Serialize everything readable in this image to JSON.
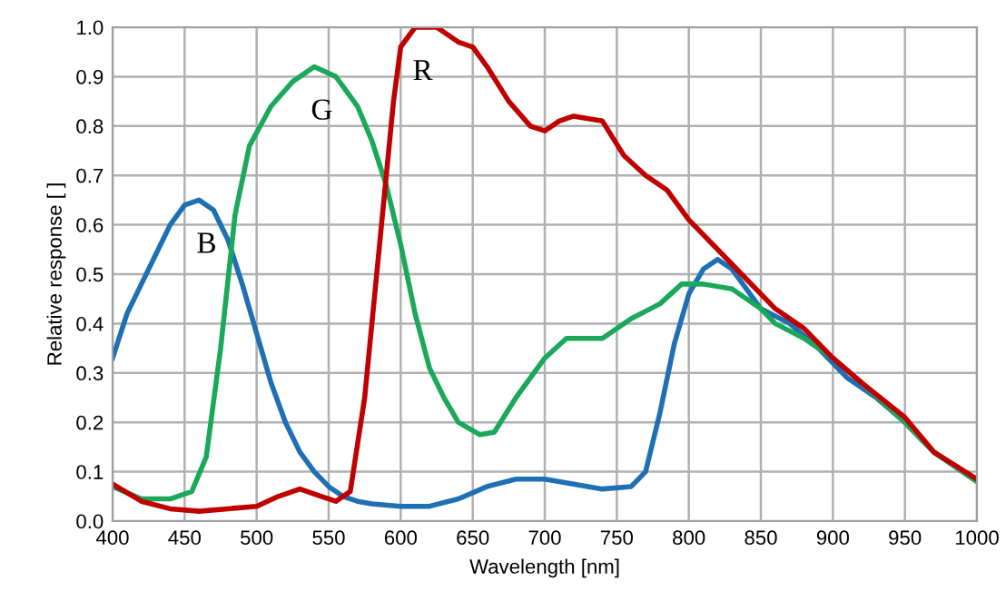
{
  "chart_data": {
    "type": "line",
    "xlabel": "Wavelength [nm]",
    "ylabel": "Relative response [ ]",
    "xlim": [
      400,
      1000
    ],
    "xticks": [
      400,
      450,
      500,
      550,
      600,
      650,
      700,
      750,
      800,
      850,
      900,
      950,
      1000
    ],
    "ylim": [
      0,
      1.0
    ],
    "yticks": [
      {
        "value": 0,
        "label": "0.0"
      },
      {
        "value": 0.1,
        "label": "0.1"
      },
      {
        "value": 0.2,
        "label": "0.2"
      },
      {
        "value": 0.3,
        "label": "0.3"
      },
      {
        "value": 0.4,
        "label": "0.4"
      },
      {
        "value": 0.5,
        "label": "0.5"
      },
      {
        "value": 0.6,
        "label": "0.6"
      },
      {
        "value": 0.7,
        "label": "0.7"
      },
      {
        "value": 0.8,
        "label": "0.8"
      },
      {
        "value": 0.9,
        "label": "0.9"
      },
      {
        "value": 1.0,
        "label": "1.0"
      }
    ],
    "grid": true,
    "marker": "none",
    "line_style": "solid",
    "series": [
      {
        "name": "B",
        "color": "#1f6fb5",
        "x": [
          400,
          410,
          420,
          430,
          440,
          450,
          460,
          470,
          480,
          490,
          500,
          510,
          520,
          530,
          540,
          550,
          560,
          570,
          580,
          600,
          620,
          640,
          660,
          680,
          700,
          720,
          740,
          760,
          770,
          780,
          790,
          800,
          810,
          820,
          830,
          840,
          850,
          870,
          890,
          910,
          930,
          950,
          970,
          1000
        ],
        "values": [
          0.33,
          0.42,
          0.48,
          0.54,
          0.6,
          0.64,
          0.65,
          0.63,
          0.57,
          0.48,
          0.38,
          0.28,
          0.2,
          0.14,
          0.1,
          0.07,
          0.05,
          0.04,
          0.035,
          0.03,
          0.03,
          0.045,
          0.07,
          0.085,
          0.085,
          0.075,
          0.065,
          0.07,
          0.1,
          0.22,
          0.36,
          0.46,
          0.51,
          0.53,
          0.51,
          0.47,
          0.43,
          0.4,
          0.35,
          0.29,
          0.25,
          0.2,
          0.14,
          0.08
        ]
      },
      {
        "name": "G",
        "color": "#1aa85a",
        "x": [
          400,
          420,
          440,
          455,
          465,
          475,
          485,
          495,
          510,
          525,
          540,
          555,
          570,
          580,
          590,
          600,
          610,
          620,
          630,
          640,
          655,
          665,
          680,
          700,
          715,
          730,
          740,
          760,
          780,
          795,
          810,
          830,
          850,
          860,
          880,
          900,
          920,
          950,
          970,
          1000
        ],
        "values": [
          0.07,
          0.045,
          0.045,
          0.06,
          0.13,
          0.35,
          0.62,
          0.76,
          0.84,
          0.89,
          0.92,
          0.9,
          0.84,
          0.77,
          0.68,
          0.56,
          0.42,
          0.31,
          0.25,
          0.2,
          0.175,
          0.18,
          0.25,
          0.33,
          0.37,
          0.37,
          0.37,
          0.41,
          0.44,
          0.48,
          0.48,
          0.47,
          0.43,
          0.4,
          0.37,
          0.33,
          0.28,
          0.2,
          0.14,
          0.08
        ]
      },
      {
        "name": "R",
        "color": "#c00000",
        "x": [
          400,
          420,
          440,
          460,
          480,
          500,
          515,
          530,
          545,
          555,
          565,
          575,
          585,
          595,
          600,
          610,
          625,
          640,
          650,
          660,
          675,
          690,
          700,
          710,
          720,
          740,
          755,
          770,
          785,
          800,
          820,
          840,
          860,
          880,
          900,
          920,
          950,
          970,
          1000
        ],
        "values": [
          0.075,
          0.04,
          0.025,
          0.02,
          0.025,
          0.03,
          0.05,
          0.065,
          0.05,
          0.04,
          0.06,
          0.25,
          0.55,
          0.85,
          0.96,
          1.0,
          1.0,
          0.97,
          0.96,
          0.92,
          0.85,
          0.8,
          0.79,
          0.81,
          0.82,
          0.81,
          0.74,
          0.7,
          0.67,
          0.61,
          0.55,
          0.49,
          0.43,
          0.39,
          0.33,
          0.28,
          0.21,
          0.14,
          0.085
        ]
      }
    ]
  }
}
